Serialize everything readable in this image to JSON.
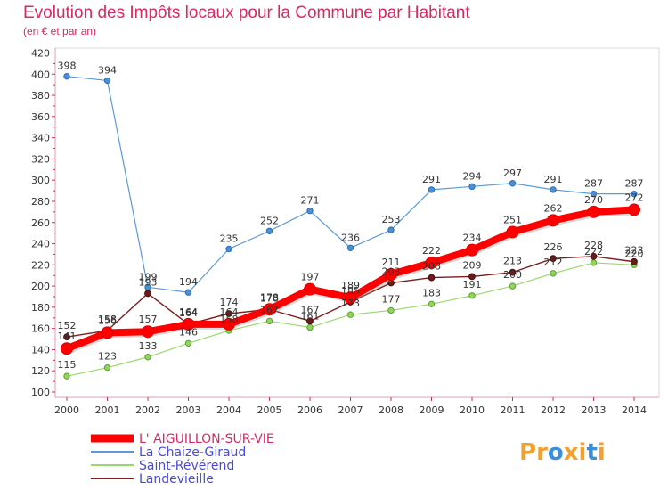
{
  "chart_data": {
    "type": "line",
    "title": "Evolution des Impôts locaux pour la Commune par Habitant",
    "subtitle": "(en € et par an)",
    "xlabel": "",
    "ylabel": "",
    "x": [
      "2000",
      "2001",
      "2002",
      "2003",
      "2004",
      "2005",
      "2006",
      "2007",
      "2008",
      "2009",
      "2010",
      "2011",
      "2012",
      "2013",
      "2014"
    ],
    "ylim": [
      100,
      420
    ],
    "yticks": [
      100,
      120,
      140,
      160,
      180,
      200,
      220,
      240,
      260,
      280,
      300,
      320,
      340,
      360,
      380,
      400,
      420
    ],
    "grid": false,
    "legend_position": "bottom-left",
    "series": [
      {
        "name": "La Chaize-Giraud",
        "color": "#5b9bd5",
        "values": [
          398,
          394,
          199,
          194,
          235,
          252,
          271,
          236,
          253,
          291,
          294,
          297,
          291,
          287,
          287
        ]
      },
      {
        "name": "Saint-Révérend",
        "color": "#9ad86e",
        "values": [
          115,
          123,
          133,
          146,
          158,
          167,
          161,
          173,
          177,
          183,
          191,
          200,
          212,
          222,
          220
        ]
      },
      {
        "name": "Landevieille",
        "color": "#7a1e1e",
        "values": [
          152,
          158,
          193,
          164,
          174,
          178,
          167,
          185,
          203,
          208,
          209,
          213,
          226,
          228,
          223
        ]
      },
      {
        "name": "L' AIGUILLON-SUR-VIE",
        "color": "#ff0000",
        "values": [
          141,
          156,
          157,
          164,
          164,
          178,
          197,
          189,
          211,
          222,
          234,
          251,
          262,
          270,
          272
        ]
      }
    ],
    "data_labels": {
      "La Chaize-Giraud": [
        "398",
        "394",
        "199",
        "194",
        "235",
        "252",
        "271",
        "236",
        "253",
        "291",
        "294",
        "297",
        "291",
        "287",
        "287"
      ],
      "Saint-Révérend": [
        "115",
        "123",
        "133",
        "146",
        "158",
        "167",
        "161",
        "173",
        "177",
        "183",
        "191",
        "200",
        "212",
        "222",
        "220"
      ],
      "Landevieille": [
        "152",
        "158",
        "193",
        "164",
        "174",
        "178",
        "167",
        "185",
        "203",
        "208",
        "209",
        "213",
        "226",
        "228",
        "223"
      ],
      "L' AIGUILLON-SUR-VIE": [
        "141",
        "156",
        "157",
        "164",
        "164",
        "178",
        "197",
        "189",
        "211",
        "222",
        "234",
        "251",
        "262",
        "270",
        "272"
      ]
    }
  },
  "legend": {
    "items": [
      {
        "label": "L' AIGUILLON-SUR-VIE",
        "color": "#ff0000"
      },
      {
        "label": "La Chaize-Giraud",
        "color": "#5b9bd5"
      },
      {
        "label": "Saint-Révérend",
        "color": "#9ad86e"
      },
      {
        "label": "Landevieille",
        "color": "#7a1e1e"
      }
    ]
  },
  "brand": {
    "name": "Proxiti",
    "letters": [
      "P",
      "r",
      "o",
      "x",
      "i",
      "t",
      "i"
    ],
    "colors": [
      "#f2a12e",
      "#f2a12e",
      "#3a8fd8",
      "#f2a12e",
      "#f2a12e",
      "#3a8fd8",
      "#f2a12e"
    ]
  }
}
